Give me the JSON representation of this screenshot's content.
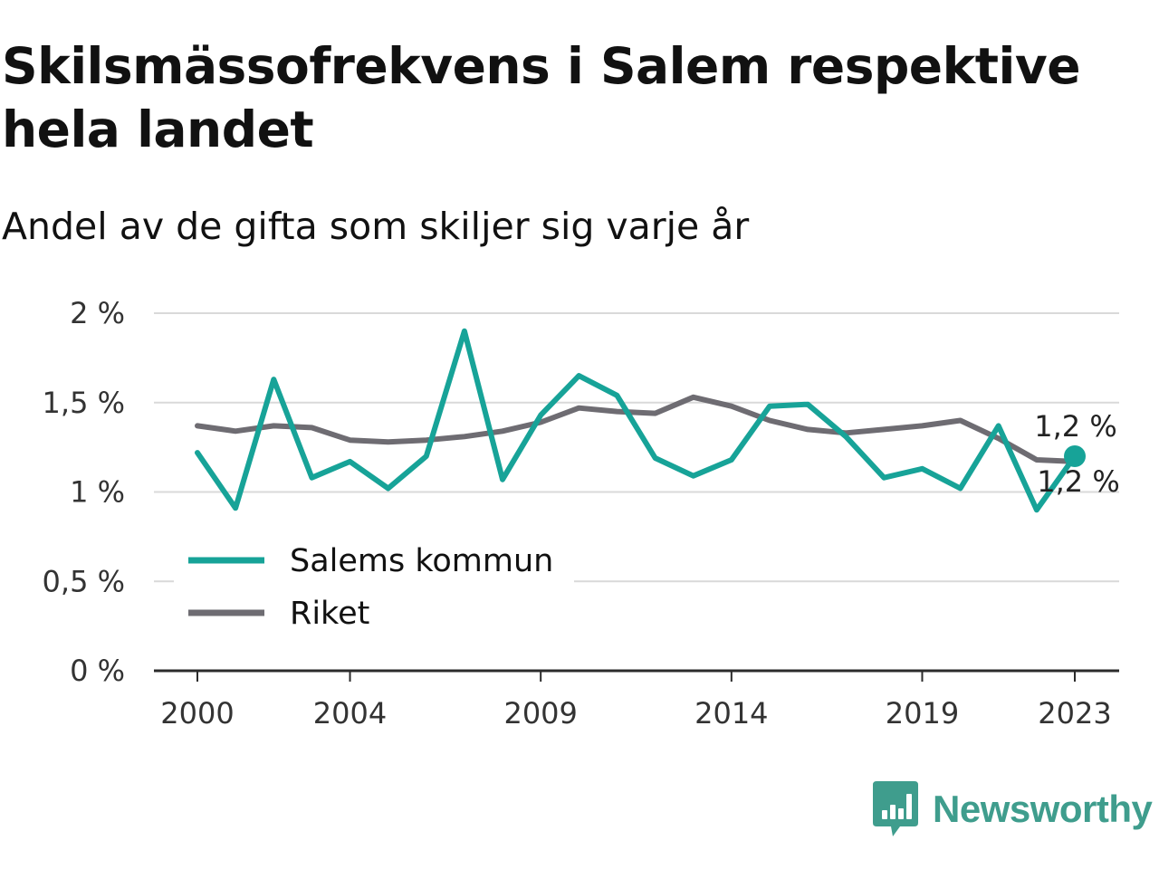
{
  "title": "Skilsmässofrekvens i Salem respektive hela landet",
  "subtitle": "Andel av de gifta som skiljer sig varje år",
  "brand": {
    "name": "Newsworthy",
    "icon": "newsworthy-logo-icon",
    "color": "#3f9d8d"
  },
  "chart_data": {
    "type": "line",
    "x": [
      2000,
      2001,
      2002,
      2003,
      2004,
      2005,
      2006,
      2007,
      2008,
      2009,
      2010,
      2011,
      2012,
      2013,
      2014,
      2015,
      2016,
      2017,
      2018,
      2019,
      2020,
      2021,
      2022,
      2023
    ],
    "series": [
      {
        "name": "Salems kommun",
        "color": "#17a398",
        "values": [
          1.22,
          0.91,
          1.63,
          1.08,
          1.17,
          1.02,
          1.2,
          1.9,
          1.07,
          1.43,
          1.65,
          1.54,
          1.19,
          1.09,
          1.18,
          1.48,
          1.49,
          1.31,
          1.08,
          1.13,
          1.02,
          1.37,
          0.9,
          1.2
        ]
      },
      {
        "name": "Riket",
        "color": "#6e6c72",
        "values": [
          1.37,
          1.34,
          1.37,
          1.36,
          1.29,
          1.28,
          1.29,
          1.31,
          1.34,
          1.39,
          1.47,
          1.45,
          1.44,
          1.53,
          1.48,
          1.4,
          1.35,
          1.33,
          1.35,
          1.37,
          1.4,
          1.3,
          1.18,
          1.17
        ]
      }
    ],
    "xticks": [
      2000,
      2004,
      2009,
      2014,
      2019,
      2023
    ],
    "xtick_labels": [
      "2000",
      "2004",
      "2009",
      "2014",
      "2019",
      "2023"
    ],
    "yticks": [
      0,
      0.5,
      1,
      1.5,
      2
    ],
    "ytick_labels": [
      "0 %",
      "0,5 %",
      "1 %",
      "1,5 %",
      "2 %"
    ],
    "ylim": [
      0,
      2
    ],
    "xlim": [
      2000,
      2023
    ],
    "grid": "horizontal",
    "legend": "bottom-left",
    "end_labels": [
      "1,2 %",
      "1,2 %"
    ],
    "xlabel": "",
    "ylabel": ""
  }
}
